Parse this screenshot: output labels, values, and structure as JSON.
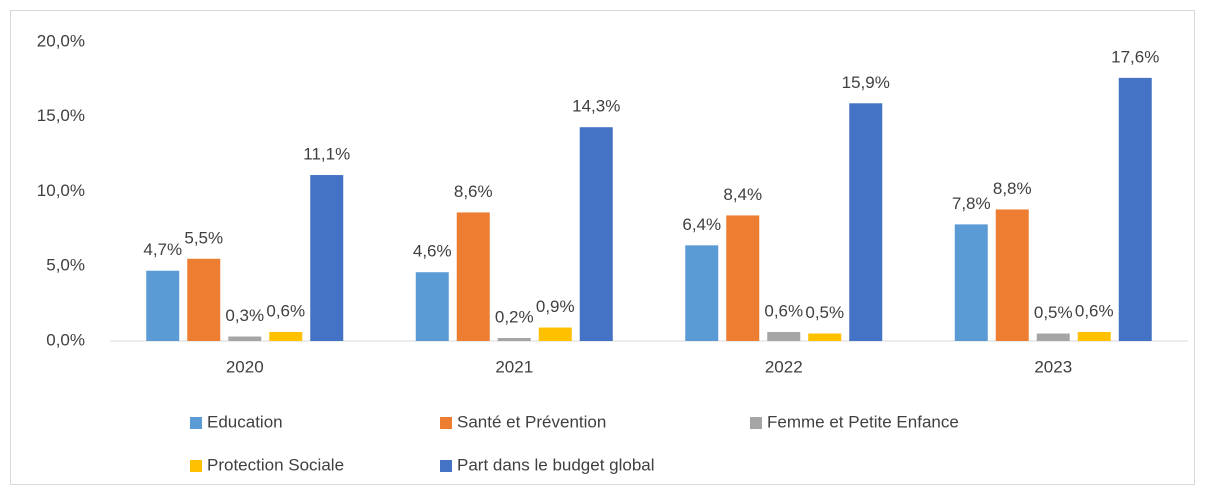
{
  "chart_data": {
    "type": "bar",
    "categories": [
      "2020",
      "2021",
      "2022",
      "2023"
    ],
    "series": [
      {
        "name": "Education",
        "color": "#5b9bd5",
        "values": [
          4.7,
          4.6,
          6.4,
          7.8
        ],
        "value_labels": [
          "4,7%",
          "4,6%",
          "6,4%",
          "7,8%"
        ]
      },
      {
        "name": "Santé et Prévention",
        "color": "#ed7d31",
        "values": [
          5.5,
          8.6,
          8.4,
          8.8
        ],
        "value_labels": [
          "5,5%",
          "8,6%",
          "8,4%",
          "8,8%"
        ]
      },
      {
        "name": "Femme et Petite Enfance",
        "color": "#a5a5a5",
        "values": [
          0.3,
          0.2,
          0.6,
          0.5
        ],
        "value_labels": [
          "0,3%",
          "0,2%",
          "0,6%",
          "0,5%"
        ]
      },
      {
        "name": "Protection Sociale",
        "color": "#ffc000",
        "values": [
          0.6,
          0.9,
          0.5,
          0.6
        ],
        "value_labels": [
          "0,6%",
          "0,9%",
          "0,5%",
          "0,6%"
        ]
      },
      {
        "name": "Part dans le budget global",
        "color": "#4472c4",
        "values": [
          11.1,
          14.3,
          15.9,
          17.6
        ],
        "value_labels": [
          "11,1%",
          "14,3%",
          "15,9%",
          "17,6%"
        ]
      }
    ],
    "ylim": [
      0,
      20
    ],
    "yticks": [
      {
        "value": 0,
        "label": "0,0%"
      },
      {
        "value": 5,
        "label": "5,0%"
      },
      {
        "value": 10,
        "label": "10,0%"
      },
      {
        "value": 15,
        "label": "15,0%"
      },
      {
        "value": 20,
        "label": "20,0%"
      }
    ],
    "grid": false,
    "legend": "bottom"
  }
}
